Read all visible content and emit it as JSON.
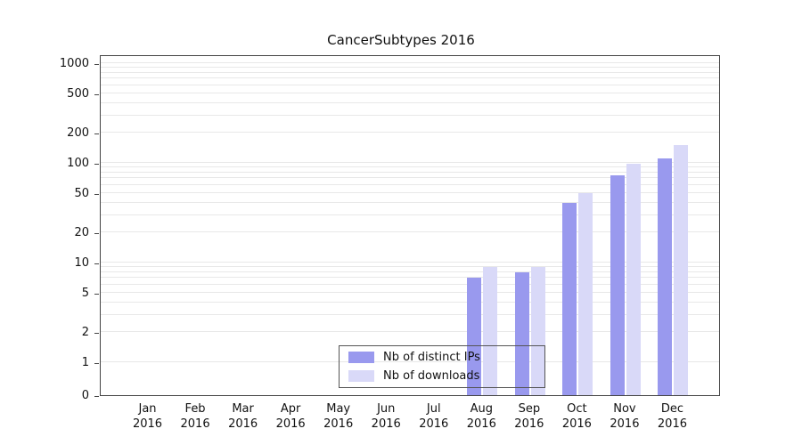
{
  "chart_data": {
    "type": "bar",
    "title": "CancerSubtypes 2016",
    "categories": [
      "Jan 2016",
      "Feb 2016",
      "Mar 2016",
      "Apr 2016",
      "May 2016",
      "Jun 2016",
      "Jul 2016",
      "Aug 2016",
      "Sep 2016",
      "Oct 2016",
      "Nov 2016",
      "Dec 2016"
    ],
    "series": [
      {
        "name": "Nb of distinct IPs",
        "color": "#9999ee",
        "values": [
          0,
          0,
          0,
          0,
          0,
          0,
          0,
          7,
          8,
          40,
          75,
          110
        ]
      },
      {
        "name": "Nb of downloads",
        "color": "#d9d9f8",
        "values": [
          0,
          0,
          0,
          0,
          0,
          0,
          0,
          9,
          9,
          50,
          97,
          150
        ]
      }
    ],
    "y_ticks": [
      0,
      1,
      2,
      5,
      10,
      20,
      50,
      100,
      200,
      500,
      1000
    ],
    "y_scale": "log",
    "ylim": [
      0,
      1000
    ],
    "grid": "horizontal-minor-log",
    "legend_position": "bottom-center-inside",
    "axis_color": "#444444",
    "grid_color": "#e8e8e8"
  }
}
